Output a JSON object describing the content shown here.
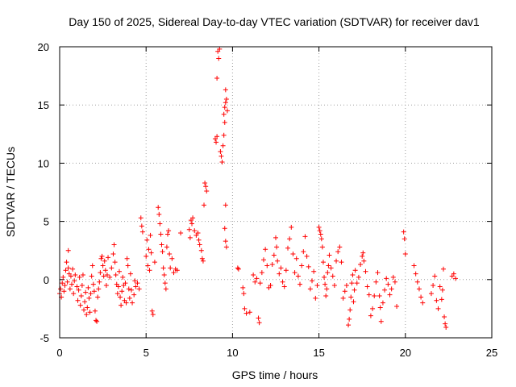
{
  "chart_data": {
    "type": "scatter",
    "title": "Day 150 of 2025, Sidereal Day-to-day VTEC variation (SDTVAR) for receiver dav1",
    "xlabel": "GPS time / hours",
    "ylabel": "SDTVAR / TECUs",
    "xlim": [
      0,
      25
    ],
    "ylim": [
      -5,
      20
    ],
    "x_ticks": [
      0,
      5,
      10,
      15,
      20,
      25
    ],
    "y_ticks": [
      -5,
      0,
      5,
      10,
      15,
      20
    ],
    "grid": true,
    "marker": "+",
    "marker_color": "#ff0000",
    "series": [
      {
        "name": "SDTVAR",
        "points": [
          [
            0.0,
            -1.2
          ],
          [
            0.05,
            -0.8
          ],
          [
            0.1,
            -1.5
          ],
          [
            0.15,
            -0.3
          ],
          [
            0.2,
            0.2
          ],
          [
            0.25,
            -1.0
          ],
          [
            0.3,
            -0.5
          ],
          [
            0.35,
            0.8
          ],
          [
            0.4,
            1.5
          ],
          [
            0.45,
            -0.2
          ],
          [
            0.5,
            2.5
          ],
          [
            0.5,
            1.0
          ],
          [
            0.55,
            0.5
          ],
          [
            0.6,
            -0.8
          ],
          [
            0.65,
            0.3
          ],
          [
            0.7,
            -0.4
          ],
          [
            0.75,
            0.9
          ],
          [
            0.8,
            -1.2
          ],
          [
            0.85,
            -0.1
          ],
          [
            0.9,
            0.4
          ],
          [
            1.0,
            -0.6
          ],
          [
            1.05,
            -1.8
          ],
          [
            1.1,
            -0.9
          ],
          [
            1.15,
            0.2
          ],
          [
            1.2,
            -2.2
          ],
          [
            1.25,
            -1.4
          ],
          [
            1.3,
            -0.5
          ],
          [
            1.35,
            0.4
          ],
          [
            1.4,
            -2.6
          ],
          [
            1.45,
            -1.9
          ],
          [
            1.5,
            -1.1
          ],
          [
            1.55,
            -3.0
          ],
          [
            1.6,
            -2.4
          ],
          [
            1.65,
            -0.7
          ],
          [
            1.7,
            -1.6
          ],
          [
            1.75,
            -2.8
          ],
          [
            1.8,
            -1.2
          ],
          [
            1.85,
            0.3
          ],
          [
            1.9,
            1.2
          ],
          [
            1.95,
            -0.4
          ],
          [
            2.0,
            -1.0
          ],
          [
            2.05,
            -2.7
          ],
          [
            2.1,
            -3.5
          ],
          [
            2.15,
            -3.6
          ],
          [
            2.2,
            -1.5
          ],
          [
            2.25,
            -0.8
          ],
          [
            2.3,
            -0.2
          ],
          [
            2.35,
            0.6
          ],
          [
            2.4,
            1.8
          ],
          [
            2.45,
            2.0
          ],
          [
            2.5,
            1.2
          ],
          [
            2.55,
            0.3
          ],
          [
            2.6,
            1.6
          ],
          [
            2.65,
            0.8
          ],
          [
            2.7,
            -0.5
          ],
          [
            2.75,
            0.4
          ],
          [
            2.8,
            1.9
          ],
          [
            2.9,
            0.2
          ],
          [
            3.0,
            1.0
          ],
          [
            3.1,
            2.2
          ],
          [
            3.15,
            3.0
          ],
          [
            3.2,
            1.5
          ],
          [
            3.25,
            0.4
          ],
          [
            3.3,
            -0.4
          ],
          [
            3.35,
            -1.2
          ],
          [
            3.4,
            -0.6
          ],
          [
            3.45,
            0.7
          ],
          [
            3.5,
            -1.5
          ],
          [
            3.55,
            -2.2
          ],
          [
            3.6,
            -1.0
          ],
          [
            3.65,
            0.2
          ],
          [
            3.7,
            -0.5
          ],
          [
            3.75,
            -1.8
          ],
          [
            3.8,
            -0.3
          ],
          [
            3.85,
            -2.0
          ],
          [
            3.9,
            1.8
          ],
          [
            3.95,
            1.2
          ],
          [
            4.0,
            -0.8
          ],
          [
            4.05,
            -1.6
          ],
          [
            4.1,
            0.5
          ],
          [
            4.15,
            -0.9
          ],
          [
            4.2,
            -2.0
          ],
          [
            4.3,
            -1.3
          ],
          [
            4.35,
            -0.1
          ],
          [
            4.4,
            -0.6
          ],
          [
            4.5,
            -0.3
          ],
          [
            4.6,
            -0.8
          ],
          [
            4.7,
            5.3
          ],
          [
            4.75,
            4.6
          ],
          [
            4.8,
            4.1
          ],
          [
            5.0,
            2.0
          ],
          [
            5.05,
            3.4
          ],
          [
            5.1,
            1.2
          ],
          [
            5.15,
            2.6
          ],
          [
            5.2,
            0.8
          ],
          [
            5.25,
            3.8
          ],
          [
            5.3,
            2.3
          ],
          [
            5.35,
            -2.7
          ],
          [
            5.4,
            -3.0
          ],
          [
            5.5,
            1.5
          ],
          [
            5.7,
            6.2
          ],
          [
            5.75,
            5.6
          ],
          [
            5.8,
            4.8
          ],
          [
            5.85,
            3.9
          ],
          [
            5.9,
            3.0
          ],
          [
            5.95,
            2.4
          ],
          [
            6.0,
            1.0
          ],
          [
            6.05,
            0.4
          ],
          [
            6.1,
            -0.3
          ],
          [
            6.15,
            -0.8
          ],
          [
            6.2,
            2.8
          ],
          [
            6.25,
            3.9
          ],
          [
            6.3,
            4.2
          ],
          [
            6.35,
            2.2
          ],
          [
            6.4,
            1.0
          ],
          [
            6.5,
            1.8
          ],
          [
            6.6,
            0.6
          ],
          [
            6.7,
            0.9
          ],
          [
            6.8,
            0.8
          ],
          [
            7.0,
            4.0
          ],
          [
            7.5,
            4.3
          ],
          [
            7.55,
            3.6
          ],
          [
            7.6,
            5.1
          ],
          [
            7.65,
            4.8
          ],
          [
            7.7,
            5.3
          ],
          [
            7.8,
            4.2
          ],
          [
            7.9,
            3.8
          ],
          [
            8.0,
            4.0
          ],
          [
            8.05,
            3.4
          ],
          [
            8.1,
            3.0
          ],
          [
            8.2,
            2.5
          ],
          [
            8.25,
            1.8
          ],
          [
            8.3,
            1.6
          ],
          [
            8.35,
            6.4
          ],
          [
            8.4,
            8.3
          ],
          [
            8.45,
            8.0
          ],
          [
            8.5,
            7.6
          ],
          [
            9.0,
            12.1
          ],
          [
            9.05,
            11.8
          ],
          [
            9.1,
            12.3
          ],
          [
            9.1,
            17.3
          ],
          [
            9.15,
            19.6
          ],
          [
            9.2,
            19.0
          ],
          [
            9.25,
            19.8
          ],
          [
            9.3,
            11.0
          ],
          [
            9.35,
            10.6
          ],
          [
            9.4,
            10.1
          ],
          [
            9.45,
            11.5
          ],
          [
            9.5,
            12.4
          ],
          [
            9.55,
            13.5
          ],
          [
            9.5,
            14.2
          ],
          [
            9.55,
            14.8
          ],
          [
            9.6,
            15.2
          ],
          [
            9.65,
            15.5
          ],
          [
            9.7,
            14.5
          ],
          [
            9.6,
            16.3
          ],
          [
            9.55,
            4.4
          ],
          [
            9.6,
            3.3
          ],
          [
            9.65,
            2.8
          ],
          [
            9.6,
            6.4
          ],
          [
            10.3,
            1.0
          ],
          [
            10.35,
            0.9
          ],
          [
            10.6,
            -0.7
          ],
          [
            10.65,
            -1.2
          ],
          [
            10.7,
            -2.5
          ],
          [
            10.8,
            -2.9
          ],
          [
            11.0,
            -2.8
          ],
          [
            11.2,
            0.4
          ],
          [
            11.3,
            -0.2
          ],
          [
            11.4,
            0.1
          ],
          [
            11.5,
            -3.3
          ],
          [
            11.55,
            -3.7
          ],
          [
            11.6,
            -0.3
          ],
          [
            11.7,
            0.6
          ],
          [
            11.8,
            1.7
          ],
          [
            11.9,
            2.6
          ],
          [
            12.0,
            1.2
          ],
          [
            12.1,
            -0.7
          ],
          [
            12.2,
            -0.5
          ],
          [
            12.3,
            1.3
          ],
          [
            12.4,
            2.1
          ],
          [
            12.5,
            3.6
          ],
          [
            12.55,
            2.8
          ],
          [
            12.6,
            1.6
          ],
          [
            12.7,
            0.5
          ],
          [
            12.8,
            1.0
          ],
          [
            12.9,
            -0.2
          ],
          [
            13.0,
            -0.6
          ],
          [
            13.1,
            0.8
          ],
          [
            13.2,
            2.7
          ],
          [
            13.3,
            3.5
          ],
          [
            13.4,
            4.5
          ],
          [
            13.5,
            2.2
          ],
          [
            13.6,
            0.6
          ],
          [
            13.7,
            1.8
          ],
          [
            13.8,
            0.3
          ],
          [
            13.9,
            -0.4
          ],
          [
            14.0,
            1.2
          ],
          [
            14.1,
            2.4
          ],
          [
            14.2,
            3.7
          ],
          [
            14.3,
            2.0
          ],
          [
            14.4,
            1.1
          ],
          [
            14.5,
            -0.8
          ],
          [
            14.6,
            -0.1
          ],
          [
            14.7,
            0.7
          ],
          [
            14.8,
            -1.6
          ],
          [
            14.9,
            -0.5
          ],
          [
            15.0,
            4.5
          ],
          [
            15.05,
            4.2
          ],
          [
            15.1,
            3.9
          ],
          [
            15.15,
            3.5
          ],
          [
            15.2,
            2.8
          ],
          [
            15.25,
            1.5
          ],
          [
            15.3,
            0.2
          ],
          [
            15.35,
            -0.4
          ],
          [
            15.4,
            -1.4
          ],
          [
            15.45,
            -0.8
          ],
          [
            15.5,
            0.6
          ],
          [
            15.55,
            1.2
          ],
          [
            15.6,
            2.1
          ],
          [
            15.7,
            1.0
          ],
          [
            15.8,
            0.3
          ],
          [
            15.9,
            -0.5
          ],
          [
            16.0,
            1.6
          ],
          [
            16.1,
            2.4
          ],
          [
            16.2,
            2.8
          ],
          [
            16.3,
            1.5
          ],
          [
            16.4,
            -1.6
          ],
          [
            16.5,
            -1.0
          ],
          [
            16.6,
            -0.5
          ],
          [
            16.7,
            -3.9
          ],
          [
            16.75,
            -3.4
          ],
          [
            16.8,
            -2.6
          ],
          [
            16.85,
            -1.5
          ],
          [
            16.9,
            -0.3
          ],
          [
            16.95,
            0.4
          ],
          [
            17.0,
            -1.9
          ],
          [
            17.05,
            -0.9
          ],
          [
            17.1,
            0.8
          ],
          [
            17.2,
            -0.3
          ],
          [
            17.3,
            0.2
          ],
          [
            17.4,
            1.3
          ],
          [
            17.5,
            2.0
          ],
          [
            17.55,
            2.3
          ],
          [
            17.6,
            1.6
          ],
          [
            17.7,
            0.7
          ],
          [
            17.8,
            -0.6
          ],
          [
            17.9,
            -1.3
          ],
          [
            18.0,
            -3.1
          ],
          [
            18.1,
            -2.5
          ],
          [
            18.2,
            -1.4
          ],
          [
            18.3,
            -0.2
          ],
          [
            18.4,
            0.6
          ],
          [
            18.5,
            -1.4
          ],
          [
            18.55,
            -2.4
          ],
          [
            18.6,
            -3.6
          ],
          [
            18.7,
            -2.0
          ],
          [
            18.8,
            -0.9
          ],
          [
            18.9,
            0.1
          ],
          [
            19.0,
            -0.4
          ],
          [
            19.1,
            -1.3
          ],
          [
            19.2,
            -0.8
          ],
          [
            19.3,
            0.2
          ],
          [
            19.4,
            -0.2
          ],
          [
            19.5,
            -2.3
          ],
          [
            19.9,
            4.1
          ],
          [
            19.95,
            3.5
          ],
          [
            20.0,
            2.2
          ],
          [
            20.5,
            1.2
          ],
          [
            20.6,
            0.5
          ],
          [
            20.7,
            -0.2
          ],
          [
            20.8,
            -0.8
          ],
          [
            20.9,
            -1.5
          ],
          [
            21.0,
            -2.0
          ],
          [
            21.5,
            -1.2
          ],
          [
            21.6,
            -0.5
          ],
          [
            21.7,
            0.3
          ],
          [
            21.8,
            -1.8
          ],
          [
            21.9,
            -2.5
          ],
          [
            22.0,
            -0.6
          ],
          [
            22.1,
            -1.7
          ],
          [
            22.15,
            -0.9
          ],
          [
            22.2,
            0.9
          ],
          [
            22.25,
            -3.2
          ],
          [
            22.3,
            -3.8
          ],
          [
            22.35,
            -4.1
          ],
          [
            22.7,
            0.3
          ],
          [
            22.8,
            0.5
          ],
          [
            22.9,
            0.1
          ]
        ]
      }
    ]
  }
}
